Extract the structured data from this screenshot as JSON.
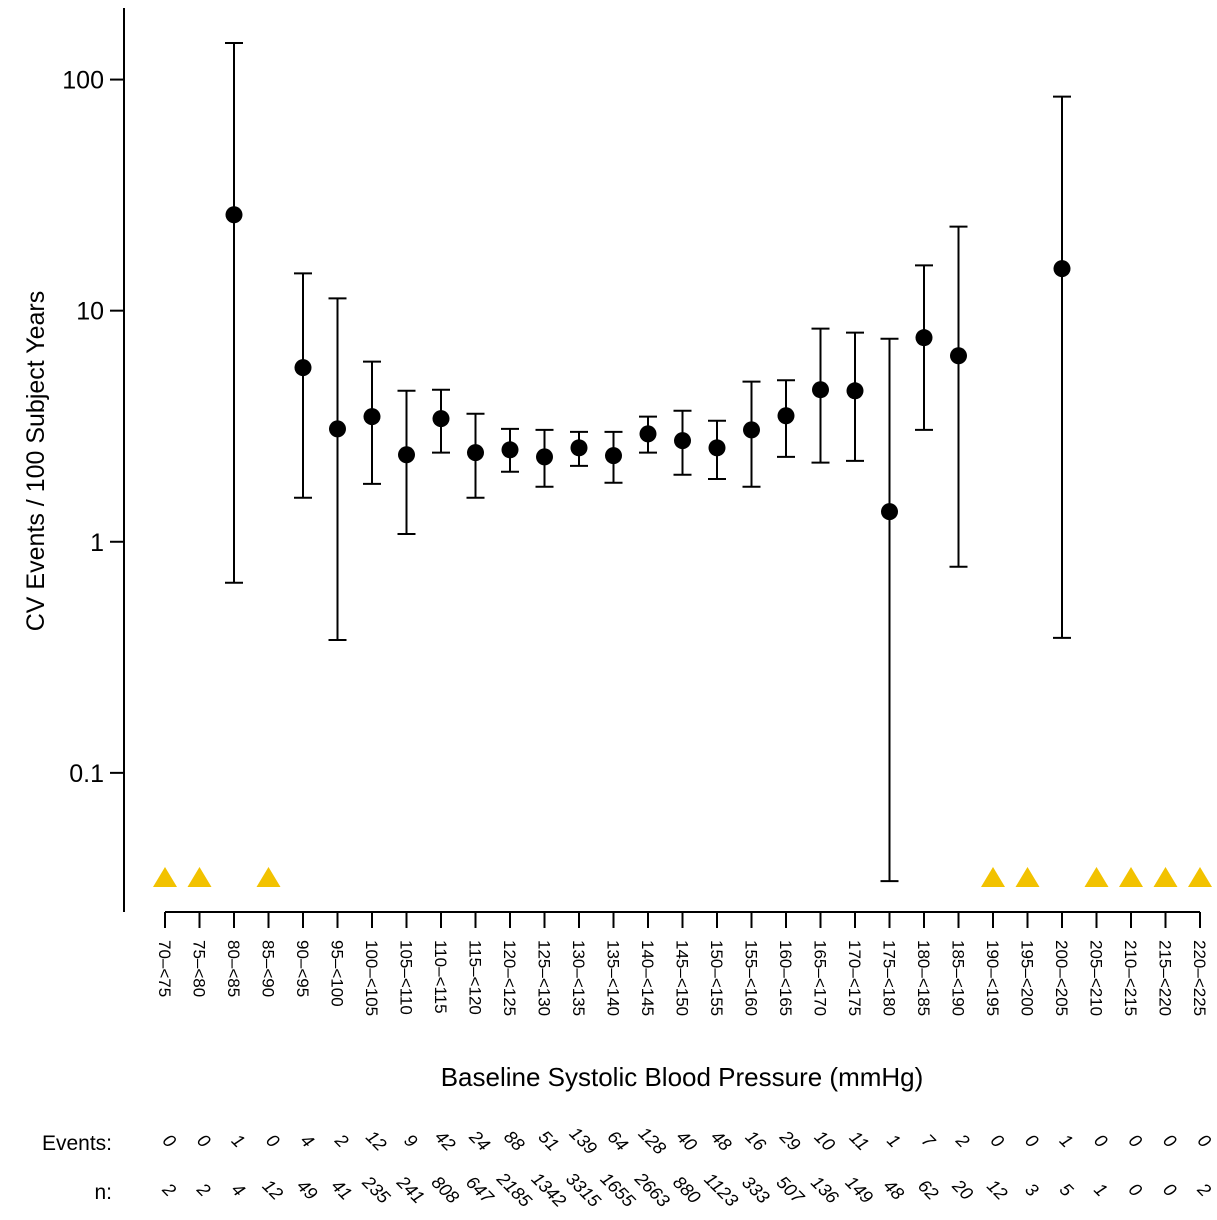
{
  "chart_data": {
    "type": "errorbar",
    "y_label": "CV Events / 100 Subject Years",
    "x_label": "Baseline Systolic Blood Pressure (mmHg)",
    "y_scale": "log",
    "ylim": [
      0.025,
      200
    ],
    "yticks": [
      0.1,
      1,
      10,
      100
    ],
    "color": "#000000",
    "zero_marker_color": "#f2c200",
    "categories": [
      "70–<75",
      "75–<80",
      "80–<85",
      "85–<90",
      "90–<95",
      "95–<100",
      "100–<105",
      "105–<110",
      "110–<115",
      "115–<120",
      "120–<125",
      "125–<130",
      "130–<135",
      "135–<140",
      "140–<145",
      "145–<150",
      "150–<155",
      "155–<160",
      "160–<165",
      "165–<170",
      "170–<175",
      "175–<180",
      "180–<185",
      "185–<190",
      "190–<195",
      "195–<200",
      "200–<205",
      "205–<210",
      "210–<215",
      "215–<220",
      "220–<225"
    ],
    "values": [
      null,
      null,
      26.0,
      null,
      5.67,
      3.08,
      3.48,
      2.38,
      3.41,
      2.43,
      2.5,
      2.33,
      2.55,
      2.36,
      2.93,
      2.74,
      2.55,
      3.05,
      3.51,
      4.55,
      4.5,
      1.35,
      7.64,
      6.38,
      null,
      null,
      15.2,
      null,
      null,
      null,
      null
    ],
    "lower": [
      null,
      null,
      0.665,
      null,
      1.55,
      0.376,
      1.78,
      1.08,
      2.43,
      1.55,
      2.01,
      1.73,
      2.13,
      1.8,
      2.43,
      1.95,
      1.87,
      1.73,
      2.33,
      2.2,
      2.24,
      0.034,
      3.05,
      0.78,
      null,
      null,
      0.384,
      null,
      null,
      null,
      null
    ],
    "upper": [
      null,
      null,
      144,
      null,
      14.5,
      11.3,
      6.02,
      4.5,
      4.55,
      3.58,
      3.08,
      3.05,
      2.99,
      2.99,
      3.48,
      3.69,
      3.34,
      4.93,
      5.0,
      8.36,
      8.03,
      7.56,
      15.7,
      23.1,
      null,
      null,
      84.4,
      null,
      null,
      null,
      null
    ],
    "events_label": "Events:",
    "events": [
      0,
      0,
      1,
      0,
      4,
      2,
      12,
      9,
      42,
      24,
      88,
      51,
      139,
      64,
      128,
      40,
      48,
      16,
      29,
      10,
      11,
      1,
      7,
      2,
      0,
      0,
      1,
      0,
      0,
      0,
      0
    ],
    "n_label": "n:",
    "n": [
      2,
      2,
      4,
      12,
      49,
      41,
      235,
      241,
      808,
      647,
      2185,
      1342,
      3315,
      1655,
      2663,
      880,
      1123,
      333,
      507,
      136,
      149,
      48,
      62,
      20,
      12,
      3,
      5,
      1,
      0,
      0,
      2
    ]
  }
}
